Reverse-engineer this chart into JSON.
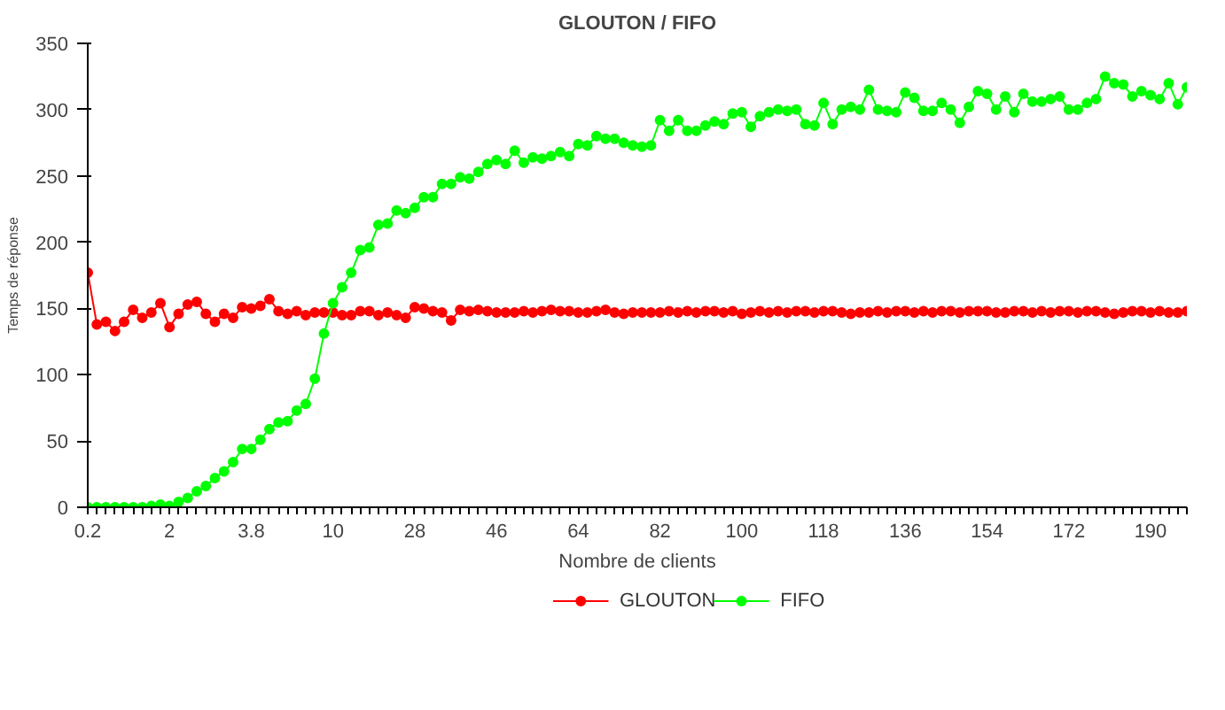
{
  "chart_data": {
    "type": "line",
    "title": "GLOUTON / FIFO",
    "xlabel": "Nombre de clients",
    "ylabel": "Temps de réponse",
    "categories": [
      "0.2",
      null,
      null,
      null,
      null,
      null,
      null,
      null,
      null,
      "2",
      null,
      null,
      null,
      null,
      null,
      null,
      null,
      null,
      "3.8",
      null,
      null,
      null,
      null,
      null,
      null,
      null,
      null,
      "10",
      null,
      null,
      null,
      null,
      null,
      null,
      null,
      null,
      "28",
      null,
      null,
      null,
      null,
      null,
      null,
      null,
      null,
      "46",
      null,
      null,
      null,
      null,
      null,
      null,
      null,
      null,
      "64",
      null,
      null,
      null,
      null,
      null,
      null,
      null,
      null,
      "82",
      null,
      null,
      null,
      null,
      null,
      null,
      null,
      null,
      "100",
      null,
      null,
      null,
      null,
      null,
      null,
      null,
      null,
      "118",
      null,
      null,
      null,
      null,
      null,
      null,
      null,
      null,
      "136",
      null,
      null,
      null,
      null,
      null,
      null,
      null,
      null,
      "154",
      null,
      null,
      null,
      null,
      null,
      null,
      null,
      null,
      "172",
      null,
      null,
      null,
      null,
      null,
      null,
      null,
      null,
      "190",
      null,
      null,
      null,
      null
    ],
    "series": [
      {
        "name": "GLOUTON",
        "color": "#ff0000",
        "values": [
          177,
          138,
          140,
          133,
          140,
          149,
          143,
          147,
          154,
          136,
          146,
          153,
          155,
          146,
          140,
          146,
          143,
          151,
          150,
          152,
          157,
          148,
          146,
          148,
          145,
          147,
          147,
          147,
          145,
          145,
          148,
          148,
          145,
          147,
          145,
          143,
          151,
          150,
          148,
          147,
          141,
          149,
          148,
          149,
          148,
          147,
          147,
          147,
          148,
          147,
          148,
          149,
          148,
          148,
          147,
          147,
          148,
          149,
          147,
          146,
          147,
          147,
          147,
          147,
          148,
          147,
          148,
          147,
          148,
          148,
          147,
          148,
          146,
          147,
          148,
          147,
          148,
          147,
          148,
          148,
          147,
          148,
          148,
          147,
          146,
          147,
          147,
          148,
          147,
          148,
          148,
          147,
          148,
          147,
          148,
          148,
          147,
          148,
          148,
          148,
          147,
          147,
          148,
          148,
          147,
          148,
          147,
          148,
          148,
          147,
          148,
          148,
          147,
          146,
          147,
          148,
          148,
          147,
          148,
          147,
          147,
          148
        ]
      },
      {
        "name": "FIFO",
        "color": "#00ff00",
        "values": [
          0,
          0,
          0,
          0,
          0,
          0,
          0,
          1,
          2,
          1,
          4,
          7,
          12,
          16,
          22,
          27,
          34,
          44,
          44,
          51,
          59,
          64,
          65,
          73,
          78,
          97,
          131,
          154,
          166,
          177,
          194,
          196,
          213,
          214,
          224,
          222,
          226,
          234,
          234,
          244,
          244,
          249,
          248,
          253,
          259,
          262,
          259,
          269,
          260,
          264,
          263,
          265,
          268,
          265,
          274,
          273,
          280,
          278,
          278,
          275,
          273,
          272,
          273,
          292,
          284,
          292,
          284,
          284,
          288,
          291,
          289,
          297,
          298,
          287,
          295,
          298,
          300,
          299,
          300,
          289,
          288,
          305,
          289,
          300,
          302,
          300,
          315,
          300,
          299,
          298,
          313,
          309,
          299,
          299,
          305,
          300,
          290,
          302,
          314,
          312,
          300,
          310,
          298,
          312,
          306,
          306,
          308,
          310,
          300,
          300,
          305,
          308,
          325,
          320,
          319,
          310,
          314,
          311,
          308,
          320,
          304,
          317
        ]
      }
    ],
    "ylim": [
      0,
      350
    ],
    "yticks": [
      0,
      50,
      100,
      150,
      200,
      250,
      300,
      350
    ],
    "marker": "circle",
    "legend": "bottom",
    "grid": false
  }
}
